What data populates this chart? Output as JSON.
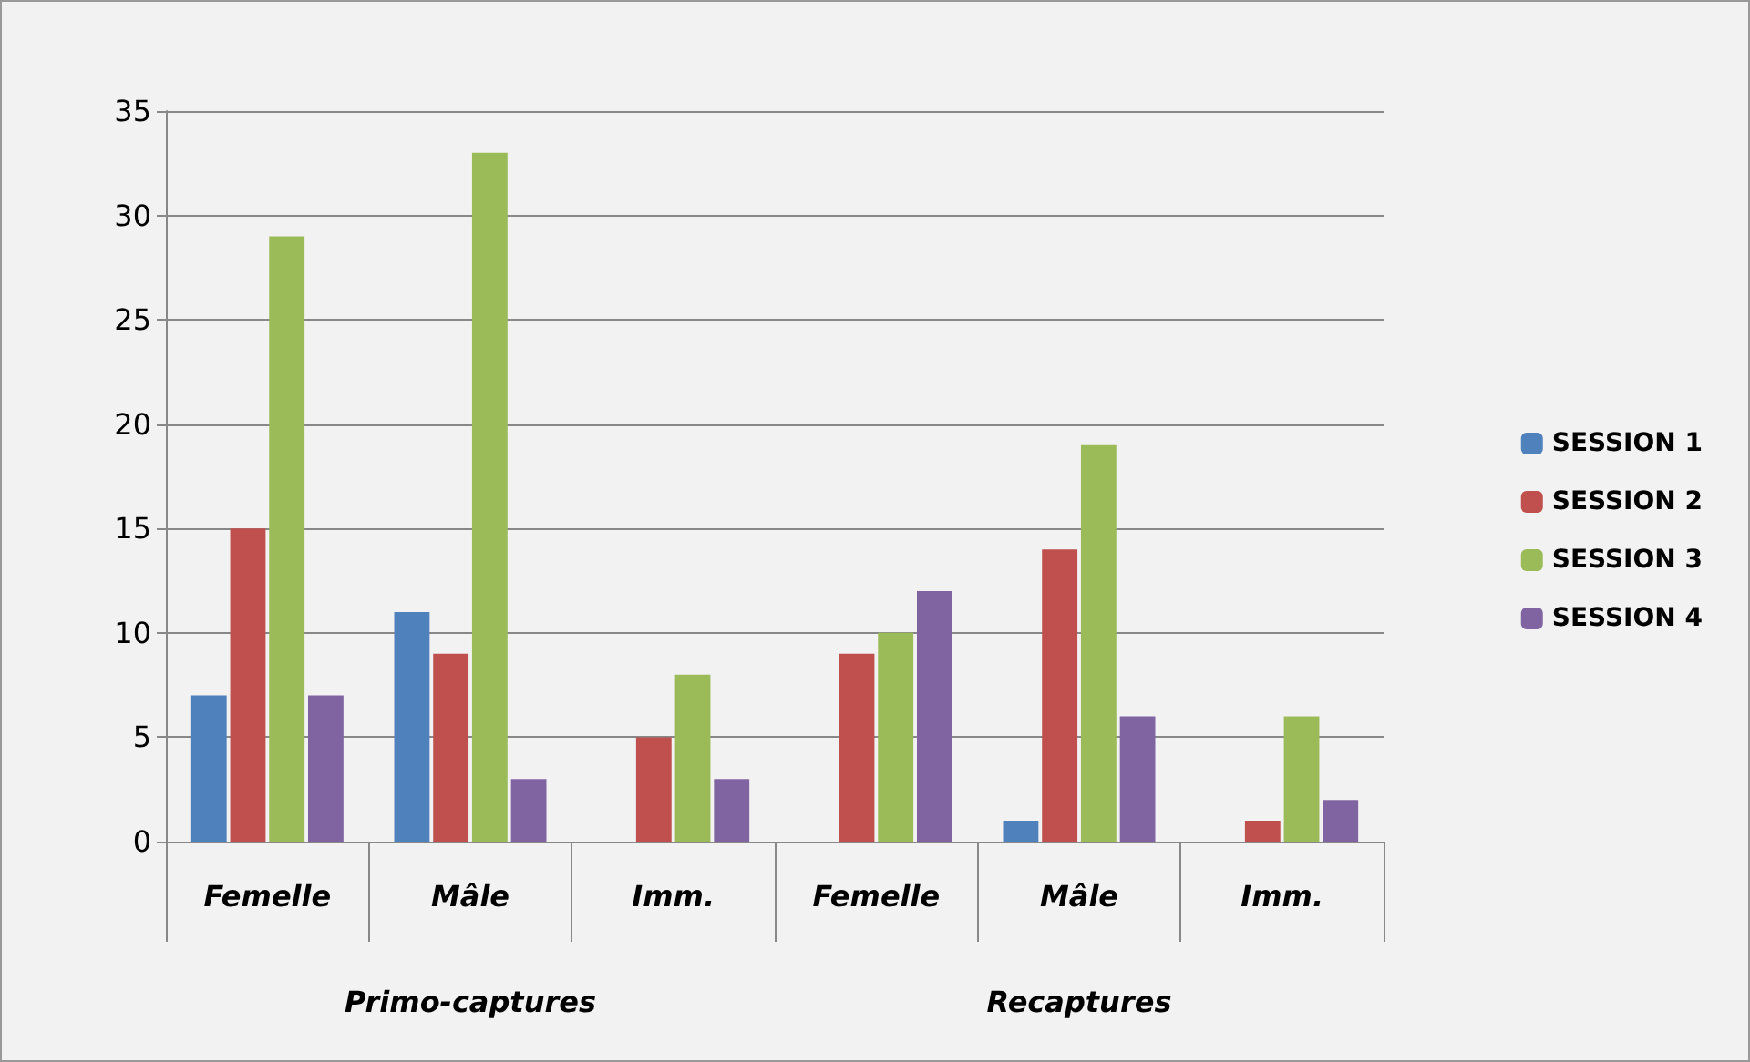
{
  "chart_data": {
    "type": "bar",
    "categories": [
      "Femelle",
      "Mâle",
      "Imm.",
      "Femelle",
      "Mâle",
      "Imm."
    ],
    "series": [
      {
        "name": "SESSION 1",
        "color": "#4f81bd",
        "values": [
          7,
          11,
          0,
          0,
          1,
          0
        ]
      },
      {
        "name": "SESSION 2",
        "color": "#c0504d",
        "values": [
          15,
          9,
          5,
          9,
          14,
          1
        ]
      },
      {
        "name": "SESSION 3",
        "color": "#9bbb59",
        "values": [
          29,
          33,
          8,
          10,
          19,
          6
        ]
      },
      {
        "name": "SESSION 4",
        "color": "#8064a2",
        "values": [
          7,
          3,
          3,
          12,
          6,
          2
        ]
      }
    ],
    "annotations": [
      "Primo-captures",
      "Recaptures"
    ],
    "ylim": [
      0,
      35
    ],
    "yticks": [
      0,
      5,
      10,
      15,
      20,
      25,
      30,
      35
    ],
    "grid": true,
    "legend": "right"
  }
}
